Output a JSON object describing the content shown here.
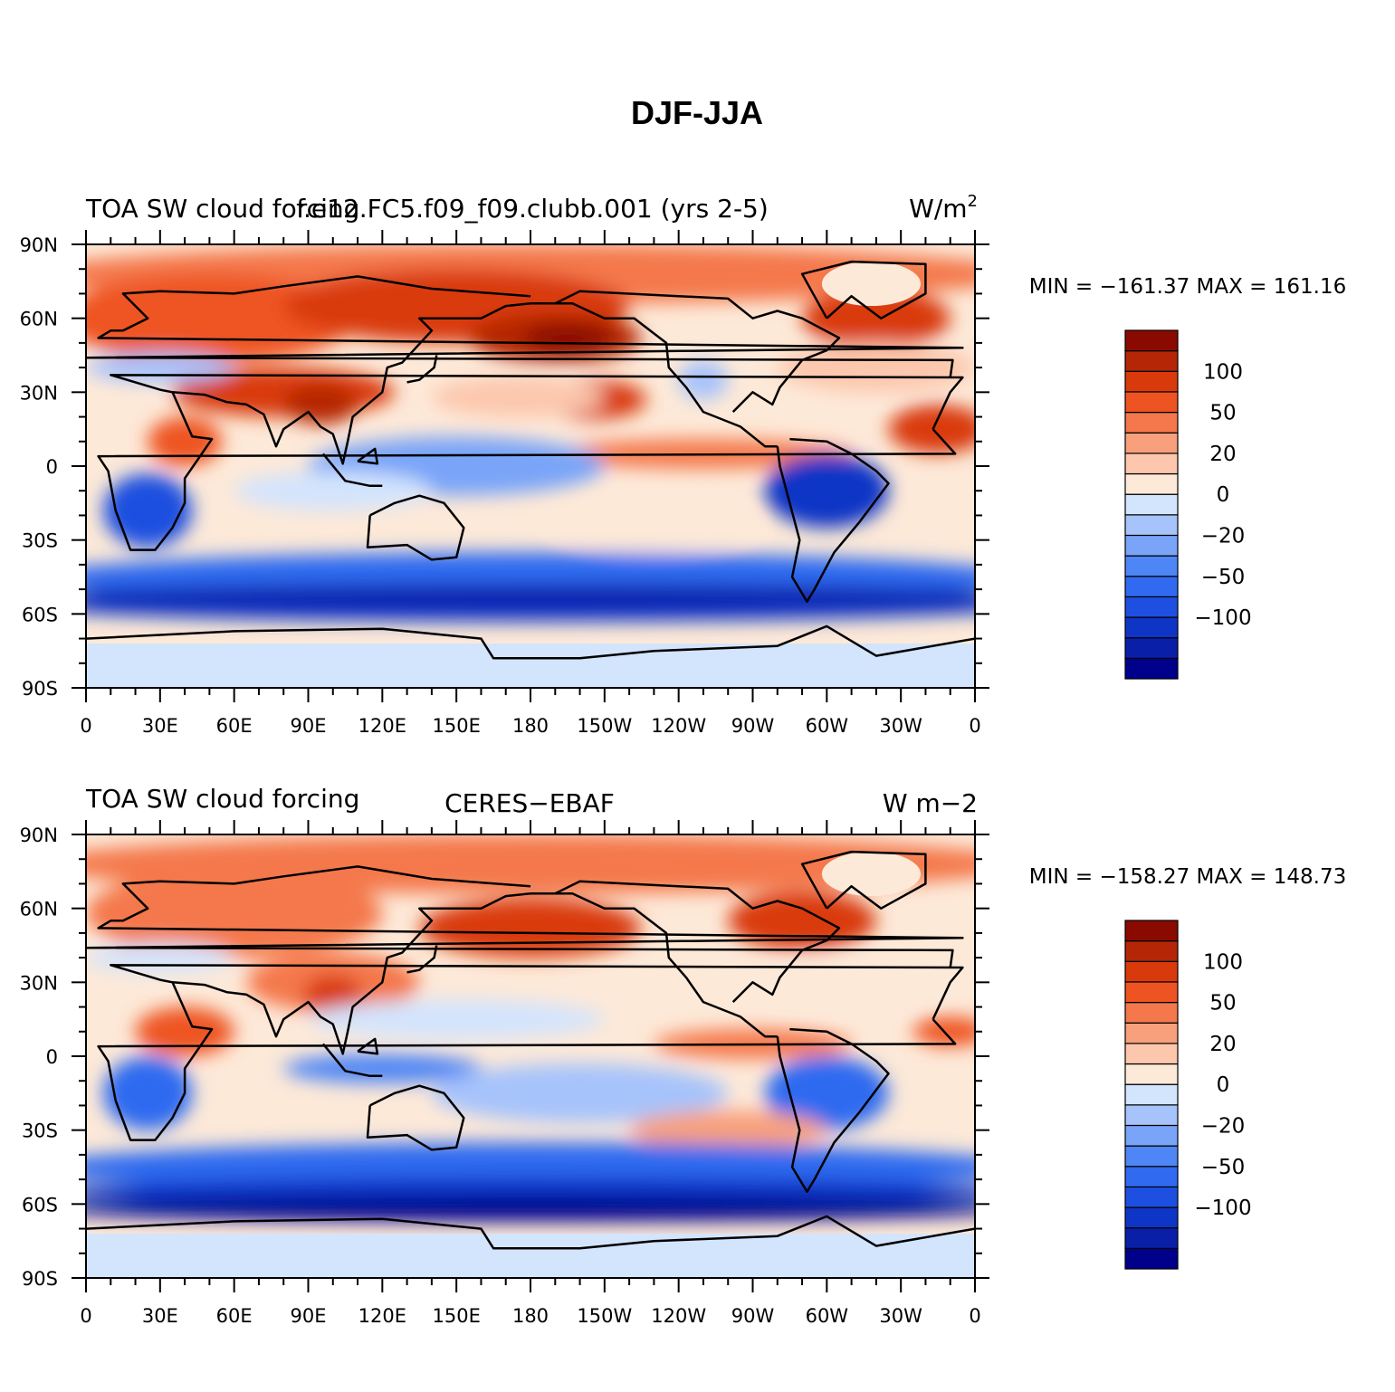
{
  "figure": {
    "title": "DJF-JJA"
  },
  "colors": {
    "ocean_land_outline": "#000000",
    "levels_palette": [
      "#00008b",
      "#0a1fa8",
      "#0f35c6",
      "#1d4fe0",
      "#2f6af0",
      "#4f86f5",
      "#79a4f8",
      "#a6c3fb",
      "#d3e4fd",
      "#fde9d8",
      "#fcc7ad",
      "#f8a07c",
      "#f4784b",
      "#ee5422",
      "#d93a0c",
      "#b52606",
      "#8a0a00"
    ]
  },
  "chart_data": [
    {
      "type": "heatmap",
      "title_left": "TOA SW cloud forcing",
      "title_center": "f.e12.FC5.f09_f09.clubb.001 (yrs 2-5)",
      "units_base": "W/m",
      "units_exp": "2",
      "stats": "MIN = −161.37 MAX = 161.16",
      "min": -161.37,
      "max": 161.16,
      "xlabels": [
        "0",
        "30E",
        "60E",
        "90E",
        "120E",
        "150E",
        "180",
        "150W",
        "120W",
        "90W",
        "60W",
        "30W",
        "0"
      ],
      "ylabels": [
        "90N",
        "60N",
        "30N",
        "0",
        "30S",
        "60S",
        "90S"
      ],
      "xlim": [
        0,
        360
      ],
      "ylim": [
        -90,
        90
      ],
      "colorbar_levels": [
        -120,
        -100,
        -80,
        -60,
        -50,
        -40,
        -30,
        -20,
        -10,
        0,
        10,
        20,
        30,
        40,
        50,
        70,
        100,
        120
      ],
      "colorbar_labels": [
        "100",
        "50",
        "20",
        "0",
        "−20",
        "−50",
        "−100"
      ]
    },
    {
      "type": "heatmap",
      "title_left": "TOA SW cloud forcing",
      "title_center": "CERES−EBAF",
      "units_base": "W m−2",
      "units_exp": "",
      "stats": "MIN = −158.27 MAX = 148.73",
      "min": -158.27,
      "max": 148.73,
      "xlabels": [
        "0",
        "30E",
        "60E",
        "90E",
        "120E",
        "150E",
        "180",
        "150W",
        "120W",
        "90W",
        "60W",
        "30W",
        "0"
      ],
      "ylabels": [
        "90N",
        "60N",
        "30N",
        "0",
        "30S",
        "60S",
        "90S"
      ],
      "xlim": [
        0,
        360
      ],
      "ylim": [
        -90,
        90
      ],
      "colorbar_levels": [
        -120,
        -100,
        -80,
        -60,
        -50,
        -40,
        -30,
        -20,
        -10,
        0,
        10,
        20,
        30,
        40,
        50,
        70,
        100,
        120
      ],
      "colorbar_labels": [
        "100",
        "50",
        "20",
        "0",
        "−20",
        "−50",
        "−100"
      ]
    }
  ]
}
